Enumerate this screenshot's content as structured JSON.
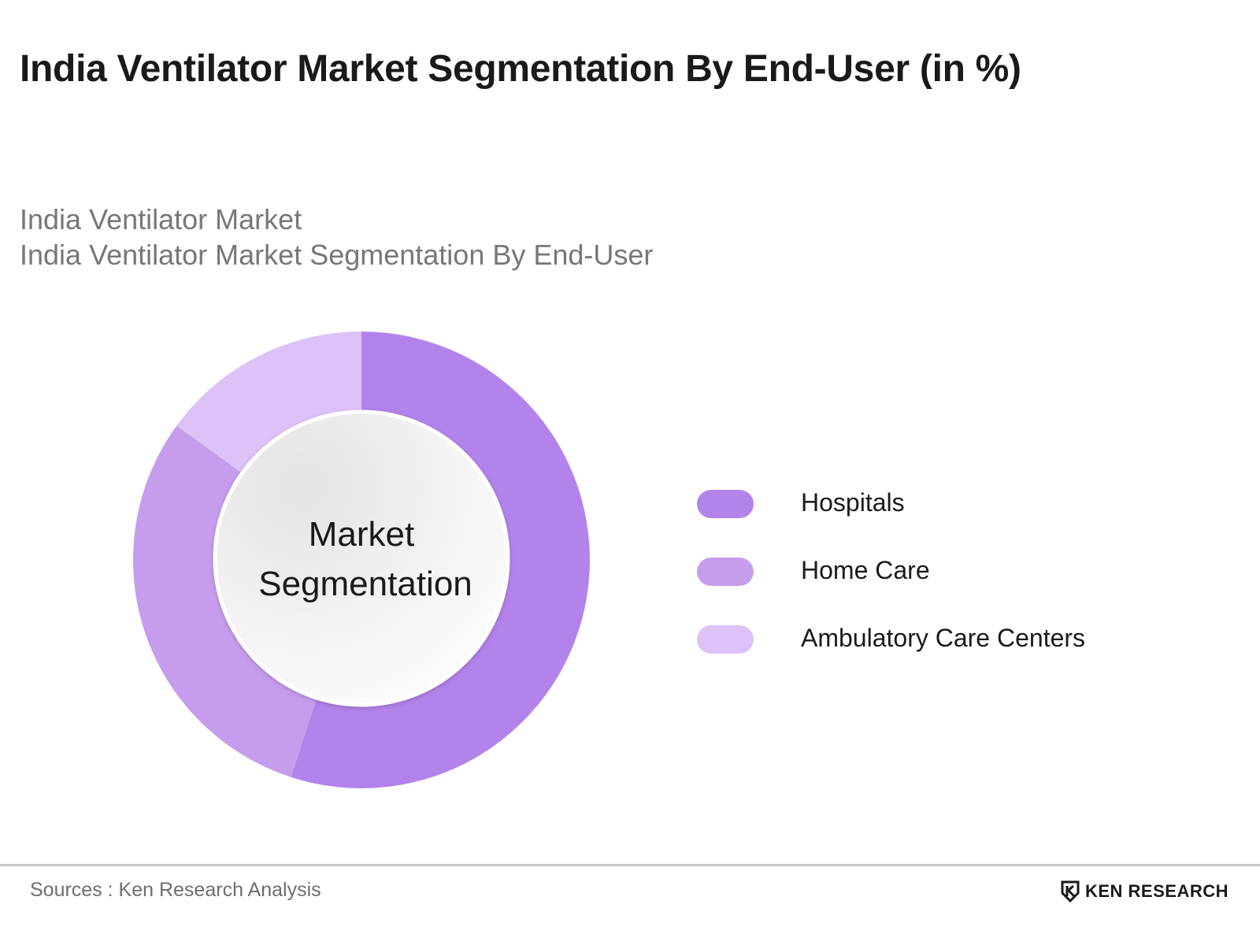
{
  "title": "India Ventilator Market Segmentation By End-User (in %)",
  "subtitle_line1": "India Ventilator Market",
  "subtitle_line2": "India Ventilator Market Segmentation By End-User",
  "center_label_line1": "Market",
  "center_label_line2": "Segmentation",
  "footer": {
    "sources": "Sources : Ken Research Analysis",
    "brand": "KEN RESEARCH",
    "brand_icon": "ken-research-logo-icon"
  },
  "chart_data": {
    "type": "pie",
    "categories": [
      "Hospitals",
      "Home Care",
      "Ambulatory Care Centers"
    ],
    "values": [
      55,
      30,
      15
    ],
    "colors": [
      "#b383ec",
      "#c69ded",
      "#dcc2f6"
    ],
    "legend_position": "right"
  }
}
